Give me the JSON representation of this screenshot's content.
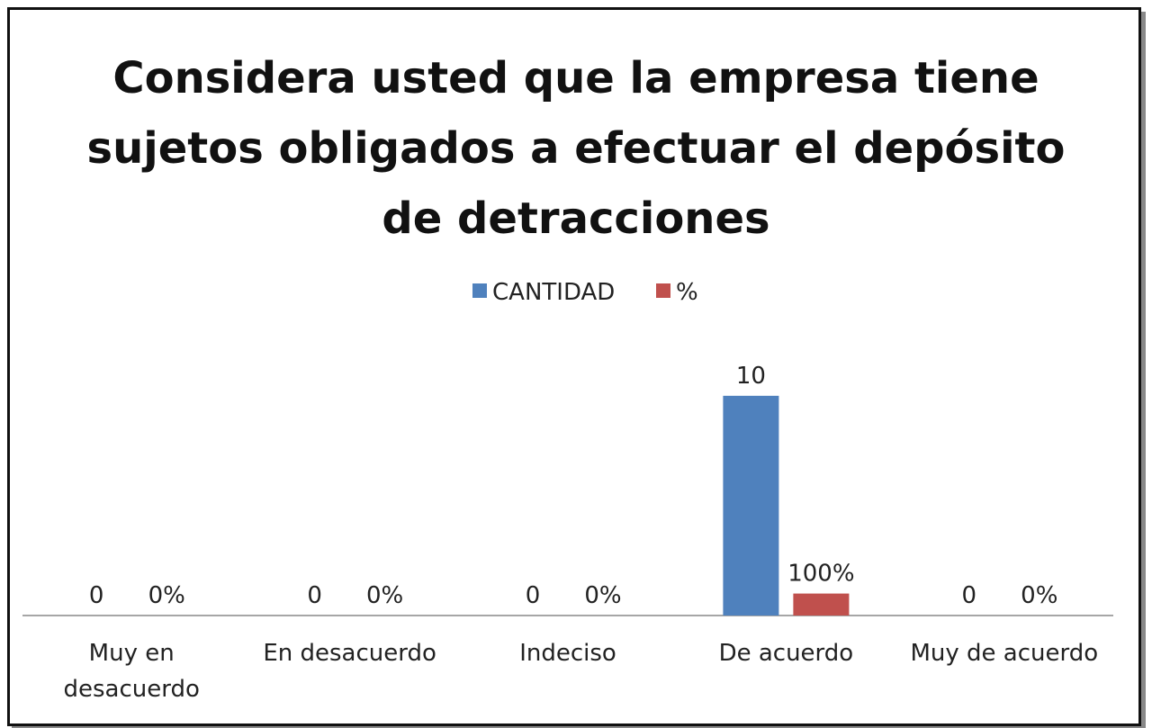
{
  "chart_data": {
    "type": "bar",
    "title": "Considera usted que la empresa tiene sujetos obligados a efectuar el depósito de detracciones",
    "categories": [
      "Muy en desacuerdo",
      "En desacuerdo",
      "Indeciso",
      "De acuerdo",
      "Muy de acuerdo"
    ],
    "series": [
      {
        "name": "CANTIDAD",
        "color": "#4f81bd",
        "values": [
          0,
          0,
          0,
          10,
          0
        ]
      },
      {
        "name": "%",
        "color": "#c0504d",
        "axis": "y2",
        "values": [
          0,
          0,
          0,
          100,
          0
        ],
        "value_labels": [
          "0%",
          "0%",
          "0%",
          "100%",
          "0%"
        ]
      }
    ],
    "ylim": [
      0,
      12
    ],
    "y2lim": [
      0,
      1200
    ],
    "legend": "top"
  }
}
